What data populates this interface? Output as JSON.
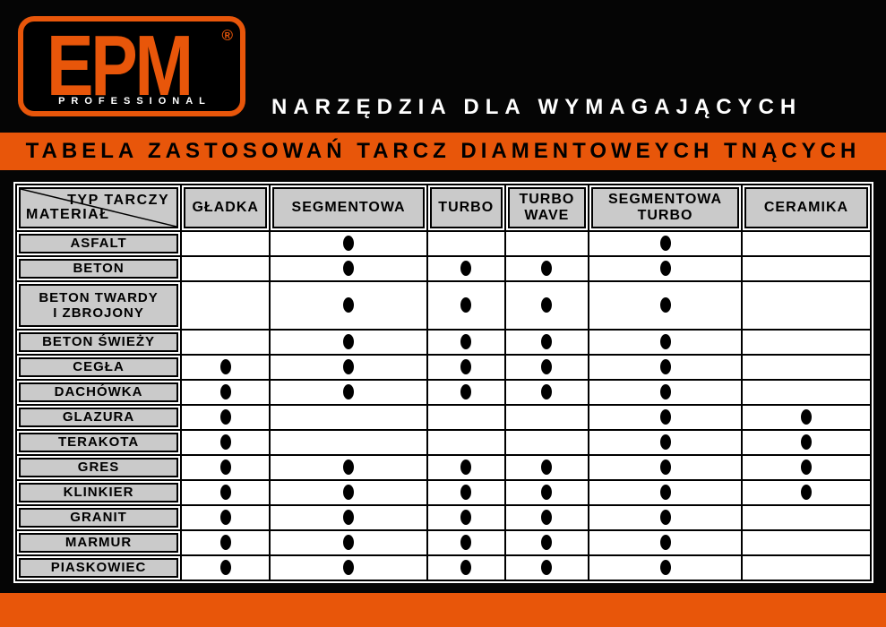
{
  "brand": {
    "logo_text": "EPM",
    "registered": "®",
    "subtext": "PROFESSIONAL",
    "tagline": "NARZĘDZIA DLA WYMAGAJĄCYCH"
  },
  "banner": {
    "title": "TABELA ZASTOSOWAŃ TARCZ DIAMENTOWEYCH TNĄCYCH"
  },
  "table": {
    "corner": {
      "top_right": "TYP TARCZY",
      "bottom_left": "MATERIAŁ"
    },
    "columns": [
      "GŁADKA",
      "SEGMENTOWA",
      "TURBO",
      "TURBO WAVE",
      "SEGMENTOWA TURBO",
      "CERAMIKA"
    ],
    "mark_glyph": "●",
    "rows": [
      {
        "material": "ASFALT",
        "marks": [
          0,
          1,
          0,
          0,
          1,
          0
        ]
      },
      {
        "material": "BETON",
        "marks": [
          0,
          1,
          1,
          1,
          1,
          0
        ]
      },
      {
        "material": "BETON TWARDY\nI ZBROJONY",
        "marks": [
          0,
          1,
          1,
          1,
          1,
          0
        ]
      },
      {
        "material": "BETON ŚWIEŻY",
        "marks": [
          0,
          1,
          1,
          1,
          1,
          0
        ]
      },
      {
        "material": "CEGŁA",
        "marks": [
          1,
          1,
          1,
          1,
          1,
          0
        ]
      },
      {
        "material": "DACHÓWKA",
        "marks": [
          1,
          1,
          1,
          1,
          1,
          0
        ]
      },
      {
        "material": "GLAZURA",
        "marks": [
          1,
          0,
          0,
          0,
          1,
          1
        ]
      },
      {
        "material": "TERAKOTA",
        "marks": [
          1,
          0,
          0,
          0,
          1,
          1
        ]
      },
      {
        "material": "GRES",
        "marks": [
          1,
          1,
          1,
          1,
          1,
          1
        ]
      },
      {
        "material": "KLINKIER",
        "marks": [
          1,
          1,
          1,
          1,
          1,
          1
        ]
      },
      {
        "material": "GRANIT",
        "marks": [
          1,
          1,
          1,
          1,
          1,
          0
        ]
      },
      {
        "material": "MARMUR",
        "marks": [
          1,
          1,
          1,
          1,
          1,
          0
        ]
      },
      {
        "material": "PIASKOWIEC",
        "marks": [
          1,
          1,
          1,
          1,
          1,
          0
        ]
      }
    ]
  },
  "colors": {
    "orange": "#e8560a",
    "gray": "#cacaca",
    "black": "#000000",
    "white": "#ffffff"
  }
}
